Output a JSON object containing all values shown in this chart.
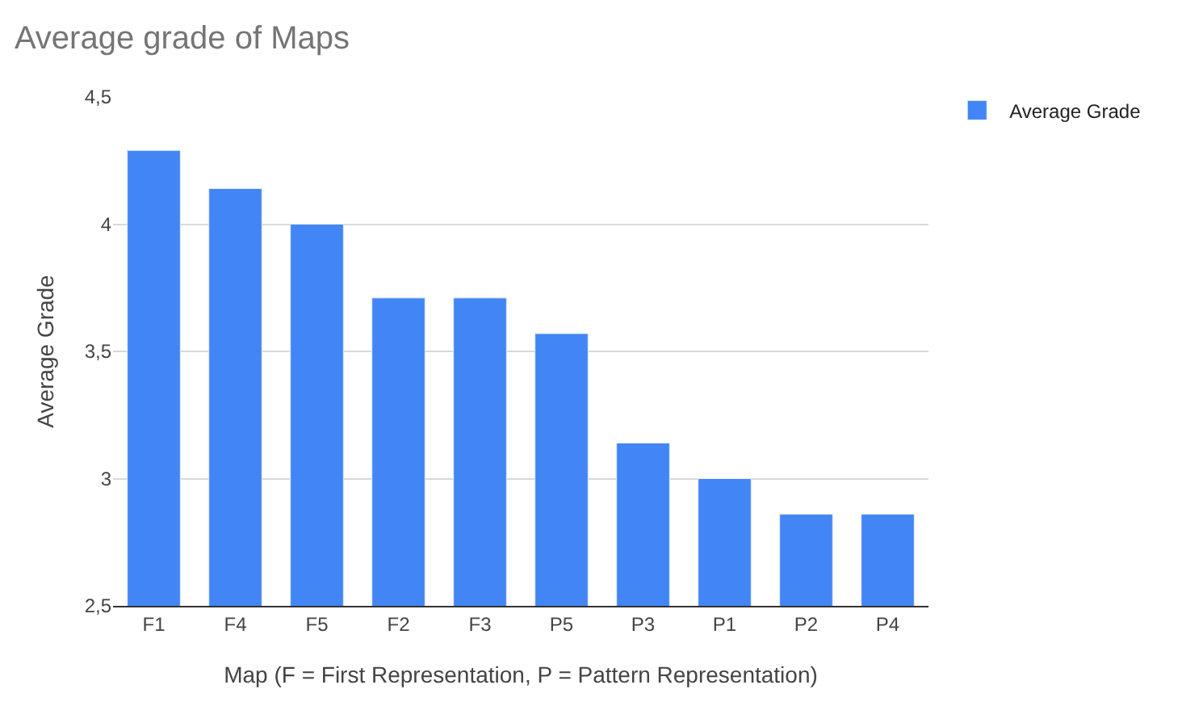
{
  "chart_data": {
    "type": "bar",
    "title": "Average grade of Maps",
    "xlabel": "Map (F = First Representation, P = Pattern Representation)",
    "ylabel": "Average Grade",
    "categories": [
      "F1",
      "F4",
      "F5",
      "F2",
      "F3",
      "P5",
      "P3",
      "P1",
      "P2",
      "P4"
    ],
    "series": [
      {
        "name": "Average Grade",
        "color": "#4285f4",
        "values": [
          4.29,
          4.14,
          4.0,
          3.71,
          3.71,
          3.57,
          3.14,
          3.0,
          2.86,
          2.86
        ]
      }
    ],
    "ylim": [
      2.5,
      4.5
    ],
    "yticks": [
      {
        "value": 2.5,
        "label": "2,5"
      },
      3,
      {
        "value": 3.5,
        "label": "3,5"
      },
      4,
      {
        "value": 4.5,
        "label": "4,5"
      }
    ],
    "grid": "y",
    "legend": "top right"
  }
}
